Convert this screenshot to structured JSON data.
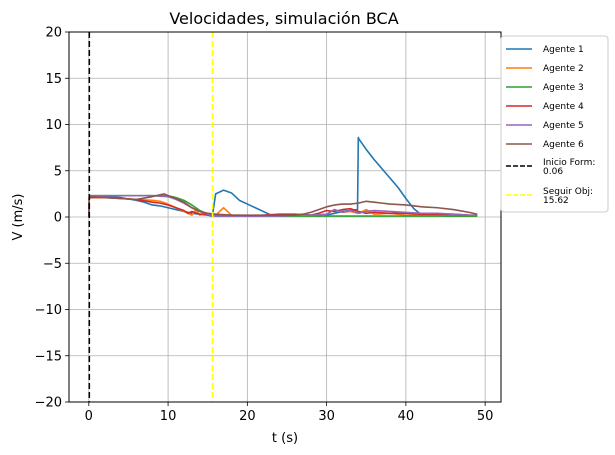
{
  "chart_data": {
    "type": "line",
    "title": "Velocidades, simulación BCA",
    "xlabel": "t (s)",
    "ylabel": "V (m/s)",
    "xlim": [
      -2.5,
      52
    ],
    "ylim": [
      -20,
      20
    ],
    "xticks": [
      0,
      10,
      20,
      30,
      40,
      50
    ],
    "xtick_labels": [
      "0",
      "10",
      "20",
      "30",
      "40",
      "50"
    ],
    "yticks": [
      -20,
      -15,
      -10,
      -5,
      0,
      5,
      10,
      15,
      20
    ],
    "ytick_labels": [
      "−20",
      "−15",
      "−10",
      "−5",
      "0",
      "5",
      "10",
      "15",
      "20"
    ],
    "grid": true,
    "legend_position": "outside-right",
    "series": [
      {
        "name": "Agente 1",
        "color": "#1f77b4",
        "x": [
          0,
          0.06,
          2,
          4,
          6,
          7,
          8,
          9,
          10,
          11,
          12,
          13,
          14,
          15,
          15.5,
          15.62,
          16,
          17,
          18,
          19,
          20,
          21,
          22,
          23,
          24,
          25,
          26,
          27,
          28,
          29,
          30,
          31,
          32,
          33,
          33.9,
          34,
          34.1,
          35,
          36,
          37,
          38,
          39,
          40,
          41,
          42,
          43,
          44,
          45,
          46,
          47,
          48,
          49
        ],
        "y": [
          0,
          2.2,
          2.2,
          2.1,
          1.8,
          1.6,
          1.3,
          1.2,
          1.0,
          0.8,
          0.6,
          0.4,
          0.3,
          0.2,
          0.1,
          0.3,
          2.5,
          2.9,
          2.6,
          1.8,
          1.4,
          1.0,
          0.6,
          0.2,
          0.1,
          0.1,
          0.2,
          0.3,
          0.2,
          0.1,
          0.2,
          0.4,
          0.6,
          0.7,
          0.8,
          8.6,
          8.4,
          7.3,
          6.2,
          5.2,
          4.2,
          3.2,
          2.0,
          0.9,
          0.2,
          0.3,
          0.2,
          0.1,
          0.1,
          0.1,
          0.1,
          0.1
        ]
      },
      {
        "name": "Agente 2",
        "color": "#ff7f0e",
        "x": [
          0,
          0.06,
          2,
          4,
          6,
          8,
          9,
          10,
          11,
          12,
          13,
          13.5,
          14,
          15,
          16,
          17,
          17.5,
          18,
          19,
          20,
          22,
          24,
          26,
          28,
          30,
          31,
          32,
          33,
          34,
          35,
          36,
          38,
          40,
          42,
          44,
          46,
          48,
          49
        ],
        "y": [
          0,
          2.1,
          2.1,
          2.0,
          1.9,
          1.8,
          1.7,
          1.4,
          1.0,
          0.6,
          0.2,
          0.8,
          0.2,
          0.4,
          0.2,
          1.0,
          0.6,
          0.2,
          0.2,
          0.1,
          0.1,
          0.2,
          0.2,
          0.1,
          0.3,
          0.8,
          0.5,
          0.6,
          0.4,
          0.8,
          0.3,
          0.4,
          0.2,
          0.2,
          0.2,
          0.1,
          0.1,
          0.1
        ]
      },
      {
        "name": "Agente 3",
        "color": "#2ca02c",
        "x": [
          0,
          0.06,
          2,
          4,
          6,
          8,
          10,
          11,
          12,
          13,
          14,
          15,
          16,
          18,
          20,
          22,
          24,
          26,
          28,
          30,
          32,
          34,
          36,
          38,
          40,
          42,
          44,
          46,
          48,
          49
        ],
        "y": [
          0,
          2.3,
          2.3,
          2.3,
          2.3,
          2.3,
          2.3,
          2.1,
          1.8,
          1.3,
          0.7,
          0.3,
          0.1,
          0.1,
          0.1,
          0.1,
          0.1,
          0.1,
          0.1,
          0.1,
          0.1,
          0.1,
          0.1,
          0.1,
          0.1,
          0.1,
          0.1,
          0.1,
          0.1,
          0.1
        ]
      },
      {
        "name": "Agente 4",
        "color": "#d62728",
        "x": [
          0,
          0.06,
          2,
          4,
          6,
          8,
          9,
          10,
          11,
          12,
          12.5,
          13,
          14,
          15,
          16,
          18,
          20,
          22,
          24,
          26,
          28,
          29,
          30,
          31,
          32,
          33,
          34,
          35,
          36,
          38,
          40,
          42,
          44,
          46,
          48,
          49
        ],
        "y": [
          0,
          2.1,
          2.1,
          2.0,
          1.9,
          1.6,
          1.5,
          1.3,
          1.0,
          0.7,
          0.4,
          0.6,
          0.3,
          0.3,
          0.2,
          0.2,
          0.1,
          0.2,
          0.3,
          0.3,
          0.2,
          0.4,
          0.7,
          0.6,
          0.8,
          0.9,
          0.6,
          0.4,
          0.5,
          0.4,
          0.4,
          0.3,
          0.3,
          0.3,
          0.2,
          0.2
        ]
      },
      {
        "name": "Agente 5",
        "color": "#9467bd",
        "x": [
          0,
          0.06,
          2,
          4,
          6,
          8,
          10,
          11,
          12,
          13,
          14,
          15,
          16,
          18,
          20,
          22,
          24,
          26,
          28,
          30,
          31,
          32,
          33,
          34,
          35,
          36,
          38,
          40,
          42,
          44,
          46,
          48,
          49
        ],
        "y": [
          0,
          2.3,
          2.3,
          2.3,
          2.3,
          2.3,
          2.2,
          1.9,
          1.5,
          1.0,
          0.6,
          0.3,
          0.1,
          0.1,
          0.1,
          0.1,
          0.1,
          0.2,
          0.2,
          0.3,
          0.8,
          0.5,
          0.7,
          0.4,
          0.6,
          0.7,
          0.6,
          0.5,
          0.4,
          0.4,
          0.3,
          0.2,
          0.2
        ]
      },
      {
        "name": "Agente 6",
        "color": "#8c564b",
        "x": [
          0,
          0.06,
          2,
          4,
          6,
          8,
          9,
          9.5,
          10,
          11,
          12,
          13,
          14,
          15,
          16,
          18,
          20,
          22,
          24,
          26,
          27,
          28,
          29,
          30,
          31,
          32,
          33,
          34,
          35,
          36,
          37,
          38,
          40,
          42,
          44,
          46,
          48,
          49
        ],
        "y": [
          0,
          2.2,
          2.1,
          2.0,
          1.9,
          2.2,
          2.4,
          2.5,
          2.3,
          2.0,
          1.6,
          1.0,
          0.6,
          0.4,
          0.3,
          0.2,
          0.2,
          0.2,
          0.2,
          0.2,
          0.3,
          0.5,
          0.8,
          1.1,
          1.3,
          1.4,
          1.4,
          1.5,
          1.7,
          1.6,
          1.5,
          1.4,
          1.3,
          1.1,
          1.0,
          0.8,
          0.5,
          0.3
        ]
      }
    ],
    "vlines": [
      {
        "name": "Inicio Form:\n0.06",
        "label_lines": [
          "Inicio Form:",
          "0.06"
        ],
        "x": 0.06,
        "color": "#000000",
        "style": "dashed"
      },
      {
        "name": "Seguir Obj:\n15.62",
        "label_lines": [
          "Seguir Obj:",
          "15.62"
        ],
        "x": 15.62,
        "color": "#ffff00",
        "style": "dashed"
      }
    ]
  }
}
